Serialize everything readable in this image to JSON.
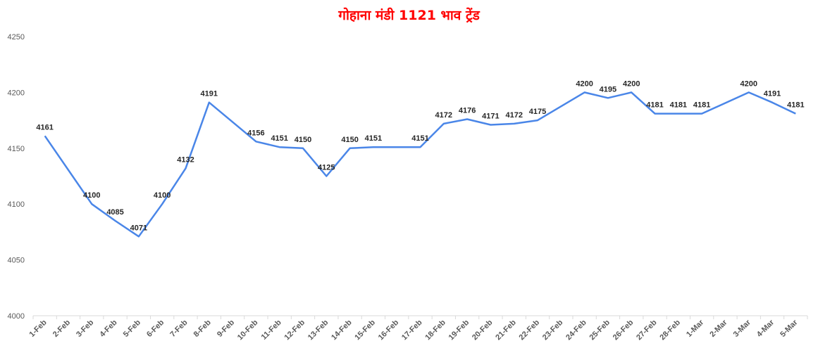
{
  "chart_data": {
    "type": "line",
    "title": "गोहाना मंडी 1121 भाव ट्रेंड",
    "xlabel": "",
    "ylabel": "",
    "ylim": [
      4000,
      4250
    ],
    "y_ticks": [
      4000,
      4050,
      4100,
      4150,
      4200,
      4250
    ],
    "grid": false,
    "legend": "none",
    "colors": {
      "title": "#ff0000",
      "line": "#4a86e8",
      "text": "#595959",
      "label": "#262626",
      "axis": "#d9d9d9"
    },
    "categories": [
      "1-Feb",
      "2-Feb",
      "3-Feb",
      "4-Feb",
      "5-Feb",
      "6-Feb",
      "7-Feb",
      "8-Feb",
      "9-Feb",
      "10-Feb",
      "11-Feb",
      "12-Feb",
      "13-Feb",
      "14-Feb",
      "15-Feb",
      "16-Feb",
      "17-Feb",
      "18-Feb",
      "19-Feb",
      "20-Feb",
      "21-Feb",
      "22-Feb",
      "23-Feb",
      "24-Feb",
      "25-Feb",
      "26-Feb",
      "27-Feb",
      "28-Feb",
      "1-Mar",
      "2-Mar",
      "3-Mar",
      "4-Mar",
      "5-Mar"
    ],
    "series": [
      {
        "values": [
          4161,
          null,
          4100,
          4085,
          4071,
          4100,
          4132,
          4191,
          null,
          4156,
          4151,
          4150,
          4125,
          4150,
          4151,
          null,
          4151,
          4172,
          4176,
          4171,
          4172,
          4175,
          null,
          4200,
          4195,
          4200,
          4181,
          4181,
          4181,
          null,
          4200,
          4191,
          4181
        ]
      }
    ]
  }
}
